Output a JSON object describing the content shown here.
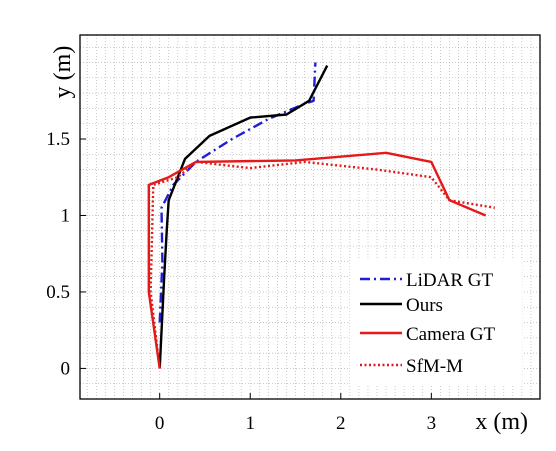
{
  "chart_data": {
    "type": "line",
    "xlabel": "x (m)",
    "ylabel": "y (m)",
    "xlim": [
      -0.88,
      4.2
    ],
    "ylim": [
      -0.2,
      2.18
    ],
    "xticks": [
      0,
      1,
      2,
      3
    ],
    "xtick_labels": [
      "0",
      "1",
      "2",
      "3"
    ],
    "yticks": [
      0,
      0.5,
      1,
      1.5
    ],
    "ytick_labels": [
      "0",
      "0.5",
      "1",
      "1.5"
    ],
    "grid": true,
    "legend_position": "bottom-right",
    "series": [
      {
        "name": "LiDAR GT",
        "color": "#1f1fd6",
        "dash": "dashdot",
        "x": [
          0.0,
          0.03,
          0.02,
          0.15,
          0.4,
          0.8,
          1.2,
          1.6,
          1.7,
          1.72
        ],
        "y": [
          0.3,
          0.7,
          1.05,
          1.2,
          1.35,
          1.5,
          1.63,
          1.73,
          1.75,
          2.0
        ]
      },
      {
        "name": "Ours",
        "color": "#000000",
        "dash": "solid",
        "x": [
          0.0,
          0.05,
          0.08,
          0.1,
          0.28,
          0.55,
          1.0,
          1.4,
          1.65,
          1.85
        ],
        "y": [
          0.0,
          0.6,
          0.92,
          1.1,
          1.37,
          1.52,
          1.64,
          1.66,
          1.75,
          1.98
        ]
      },
      {
        "name": "Camera GT",
        "color": "#e41a1a",
        "dash": "solid",
        "x": [
          0.0,
          -0.12,
          -0.12,
          0.1,
          0.4,
          1.5,
          2.5,
          3.0,
          3.2,
          3.6
        ],
        "y": [
          0.0,
          0.5,
          1.2,
          1.25,
          1.35,
          1.36,
          1.41,
          1.35,
          1.1,
          1.0
        ]
      },
      {
        "name": "SfM-M",
        "color": "#e41a1a",
        "dash": "dotted",
        "x": [
          0.0,
          -0.1,
          -0.07,
          0.2,
          0.4,
          1.0,
          1.6,
          2.4,
          3.0,
          3.2,
          3.7
        ],
        "y": [
          0.0,
          0.5,
          1.2,
          1.25,
          1.35,
          1.31,
          1.35,
          1.3,
          1.25,
          1.1,
          1.05
        ]
      }
    ]
  }
}
